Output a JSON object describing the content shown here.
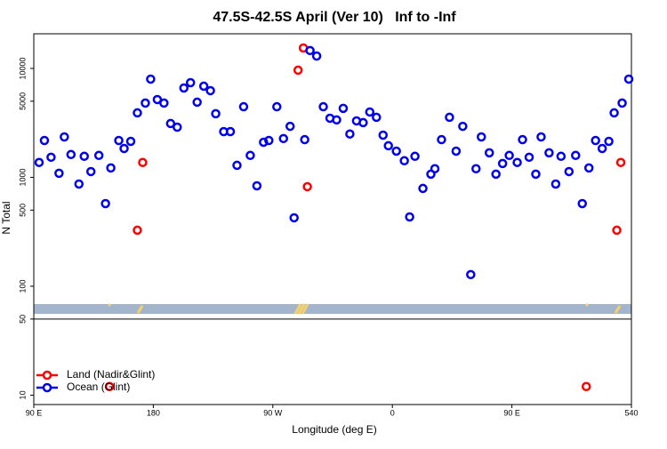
{
  "chart_data": {
    "type": "scatter",
    "title": "47.5S-42.5S April (Ver 10)   Inf to -Inf",
    "x_label": "Longitude (deg E)",
    "y_label": "N Total",
    "log_y": true,
    "legend": "bottom left",
    "xlim": [
      90,
      540
    ],
    "xticks": [
      {
        "value": 90,
        "label": "90 E"
      },
      180,
      {
        "value": 270,
        "label": "90 W"
      },
      {
        "value": 360,
        "label": "0"
      },
      {
        "value": 450,
        "label": "90 E"
      },
      540
    ],
    "ylim": [
      8.2,
      20800
    ],
    "yticks": [
      10,
      50,
      100,
      500,
      1000,
      5000,
      10000
    ],
    "series": [
      {
        "name": "Land (Nadir&Glint)",
        "color": "#ff0000",
        "x": [
          147,
          168,
          172,
          289,
          293,
          296,
          506,
          529,
          532
        ],
        "values": [
          12,
          327,
          1370,
          9640,
          15400,
          821,
          12,
          327,
          1370
        ]
      },
      {
        "name": "Ocean (Glint)",
        "color": "#0000ee",
        "x": [
          94,
          98,
          103,
          109,
          113,
          118,
          124,
          128,
          133,
          139,
          144,
          148,
          154,
          158,
          163,
          168,
          174,
          178,
          183,
          188,
          193,
          198,
          203,
          208,
          213,
          218,
          223,
          227,
          233,
          238,
          243,
          248,
          253,
          258,
          263,
          267,
          273,
          278,
          283,
          286,
          294,
          298,
          303,
          308,
          313,
          318,
          323,
          328,
          333,
          338,
          343,
          348,
          353,
          357,
          363,
          369,
          373,
          377,
          383,
          389,
          392,
          397,
          403,
          408,
          413,
          419,
          423,
          427,
          433,
          438,
          443,
          448,
          454,
          458,
          463,
          468,
          472,
          478,
          483,
          487,
          493,
          498,
          503,
          508,
          513,
          518,
          523,
          527,
          533,
          538
        ],
        "values": [
          1370,
          2180,
          1530,
          1090,
          2350,
          1620,
          868,
          1560,
          1130,
          1590,
          574,
          1220,
          2180,
          1840,
          2140,
          3910,
          4810,
          7980,
          5180,
          4810,
          3120,
          2890,
          6610,
          7400,
          4900,
          6870,
          6250,
          3840,
          2630,
          2630,
          1290,
          4450,
          1590,
          836,
          2100,
          2180,
          4450,
          2270,
          2940,
          425,
          2220,
          14600,
          13000,
          4450,
          3490,
          3370,
          4300,
          2500,
          3300,
          3180,
          3980,
          3560,
          2440,
          1950,
          1740,
          1420,
          433,
          1560,
          791,
          1070,
          1200,
          2220,
          3560,
          1740,
          2940,
          128,
          1200,
          2350,
          1680,
          1070,
          1340,
          1590,
          1370,
          2220,
          1530,
          1070,
          2350,
          1680,
          868,
          1560,
          1130,
          1590,
          574,
          1220,
          2180,
          1840,
          2140,
          3910,
          4810,
          7980
        ]
      }
    ]
  }
}
